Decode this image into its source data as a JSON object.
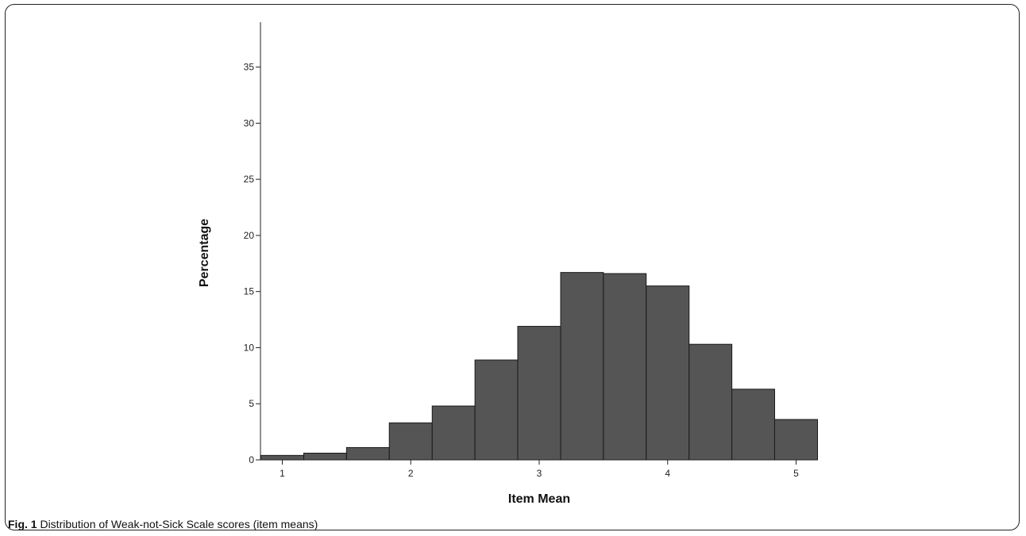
{
  "caption": {
    "label": "Fig. 1",
    "text": "Distribution of Weak-not-Sick Scale scores (item means)"
  },
  "colors": {
    "bar_fill": "#555555",
    "bar_stroke": "#1a1a1a",
    "axis": "#222222"
  },
  "chart_data": {
    "type": "bar",
    "title": "",
    "xlabel": "Item Mean",
    "ylabel": "Percentage",
    "xlim": [
      0.83,
      5.17
    ],
    "ylim": [
      0,
      39
    ],
    "x_ticks": [
      1,
      2,
      3,
      4,
      5
    ],
    "y_ticks": [
      0,
      5,
      10,
      15,
      20,
      25,
      30,
      35
    ],
    "bin_width": 0.333,
    "bins": [
      {
        "start": 0.833,
        "end": 1.167,
        "value": 0.4
      },
      {
        "start": 1.167,
        "end": 1.5,
        "value": 0.6
      },
      {
        "start": 1.5,
        "end": 1.833,
        "value": 1.1
      },
      {
        "start": 1.833,
        "end": 2.167,
        "value": 3.3
      },
      {
        "start": 2.167,
        "end": 2.5,
        "value": 4.8
      },
      {
        "start": 2.5,
        "end": 2.833,
        "value": 8.9
      },
      {
        "start": 2.833,
        "end": 3.167,
        "value": 11.9
      },
      {
        "start": 3.167,
        "end": 3.5,
        "value": 16.7
      },
      {
        "start": 3.5,
        "end": 3.833,
        "value": 16.6
      },
      {
        "start": 3.833,
        "end": 4.167,
        "value": 15.5
      },
      {
        "start": 4.167,
        "end": 4.5,
        "value": 10.3
      },
      {
        "start": 4.5,
        "end": 4.833,
        "value": 6.3
      },
      {
        "start": 4.833,
        "end": 5.167,
        "value": 3.6
      }
    ],
    "grid": false,
    "legend": "none"
  }
}
